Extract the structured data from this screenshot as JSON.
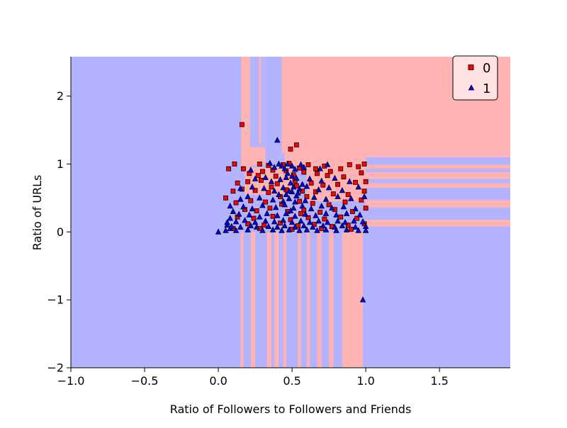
{
  "chart_data": {
    "type": "scatter",
    "title": "",
    "xlabel": "Ratio of Followers to Followers and Friends",
    "ylabel": "Ratio of URLs",
    "xlim": [
      -1.0,
      1.98
    ],
    "ylim": [
      -2.0,
      2.58
    ],
    "x_ticks": [
      -1.0,
      -0.5,
      0.0,
      0.5,
      1.0,
      1.5
    ],
    "x_tick_labels": [
      "−1.0",
      "−0.5",
      "0.0",
      "0.5",
      "1.0",
      "1.5"
    ],
    "y_ticks": [
      -2,
      -1,
      0,
      1,
      2
    ],
    "y_tick_labels": [
      "−2",
      "−1",
      "0",
      "1",
      "2"
    ],
    "grid": false,
    "legend": {
      "placement": "top-right",
      "entries": [
        "0",
        "1"
      ]
    },
    "colors": {
      "class_0_region": "#ffb3b3",
      "class_1_region": "#b3b3ff",
      "class_0_marker": "#ff0000",
      "class_1_marker": "#0000ff",
      "marker_edge": "#000000"
    },
    "decision_regions": {
      "description_class": "1",
      "class_0_rectangles": [
        {
          "x": [
            0.43,
            1.98
          ],
          "y": [
            1.15,
            2.58
          ]
        },
        {
          "x": [
            1.0,
            1.98
          ],
          "y": [
            1.1,
            1.15
          ]
        },
        {
          "x": [
            1.0,
            1.98
          ],
          "y": [
            0.93,
            0.99
          ]
        },
        {
          "x": [
            1.0,
            1.98
          ],
          "y": [
            0.78,
            0.88
          ]
        },
        {
          "x": [
            1.0,
            1.98
          ],
          "y": [
            0.65,
            0.72
          ]
        },
        {
          "x": [
            1.0,
            1.98
          ],
          "y": [
            0.36,
            0.47
          ]
        },
        {
          "x": [
            1.0,
            1.98
          ],
          "y": [
            0.08,
            0.18
          ]
        },
        {
          "x": [
            0.155,
            0.215
          ],
          "y": [
            0.92,
            2.58
          ]
        },
        {
          "x": [
            0.275,
            0.29
          ],
          "y": [
            1.3,
            2.58
          ]
        },
        {
          "x": [
            0.15,
            0.17
          ],
          "y": [
            -2.0,
            0.0
          ]
        },
        {
          "x": [
            0.22,
            0.25
          ],
          "y": [
            -2.0,
            0.0
          ]
        },
        {
          "x": [
            0.33,
            0.36
          ],
          "y": [
            -2.0,
            0.0
          ]
        },
        {
          "x": [
            0.38,
            0.41
          ],
          "y": [
            -2.0,
            0.0
          ]
        },
        {
          "x": [
            0.44,
            0.46
          ],
          "y": [
            -2.0,
            0.0
          ]
        },
        {
          "x": [
            0.54,
            0.56
          ],
          "y": [
            -2.0,
            0.0
          ]
        },
        {
          "x": [
            0.6,
            0.62
          ],
          "y": [
            -2.0,
            0.0
          ]
        },
        {
          "x": [
            0.67,
            0.7
          ],
          "y": [
            -2.0,
            0.0
          ]
        },
        {
          "x": [
            0.75,
            0.78
          ],
          "y": [
            -2.0,
            0.0
          ]
        },
        {
          "x": [
            0.84,
            0.98
          ],
          "y": [
            -2.0,
            0.0
          ]
        },
        {
          "x": [
            0.18,
            0.5
          ],
          "y": [
            0.55,
            0.95
          ]
        },
        {
          "x": [
            0.6,
            1.0
          ],
          "y": [
            0.45,
            0.98
          ]
        },
        {
          "x": [
            0.45,
            1.0
          ],
          "y": [
            0.98,
            1.15
          ]
        },
        {
          "x": [
            0.2,
            0.32
          ],
          "y": [
            0.98,
            1.25
          ]
        }
      ]
    },
    "series": [
      {
        "name": "0",
        "marker": "square",
        "points": [
          [
            0.16,
            1.58
          ],
          [
            0.53,
            1.28
          ],
          [
            0.49,
            1.22
          ],
          [
            0.07,
            0.93
          ],
          [
            0.11,
            1.0
          ],
          [
            0.17,
            0.93
          ],
          [
            0.28,
            1.0
          ],
          [
            0.34,
            0.98
          ],
          [
            0.37,
            0.91
          ],
          [
            0.3,
            0.89
          ],
          [
            0.44,
            0.99
          ],
          [
            0.48,
            1.01
          ],
          [
            0.55,
            0.94
          ],
          [
            0.61,
            0.99
          ],
          [
            0.66,
            0.93
          ],
          [
            0.72,
            0.97
          ],
          [
            0.76,
            0.89
          ],
          [
            0.83,
            0.93
          ],
          [
            0.89,
            0.99
          ],
          [
            0.95,
            0.96
          ],
          [
            0.99,
            1.0
          ],
          [
            0.21,
            0.86
          ],
          [
            0.27,
            0.83
          ],
          [
            0.39,
            0.82
          ],
          [
            0.51,
            0.84
          ],
          [
            0.58,
            0.88
          ],
          [
            0.67,
            0.86
          ],
          [
            0.74,
            0.83
          ],
          [
            0.85,
            0.81
          ],
          [
            0.97,
            0.87
          ],
          [
            0.13,
            0.72
          ],
          [
            0.2,
            0.74
          ],
          [
            0.29,
            0.76
          ],
          [
            0.4,
            0.71
          ],
          [
            0.52,
            0.75
          ],
          [
            0.63,
            0.72
          ],
          [
            0.71,
            0.69
          ],
          [
            0.81,
            0.7
          ],
          [
            0.93,
            0.73
          ],
          [
            1.0,
            0.74
          ],
          [
            0.05,
            0.5
          ],
          [
            0.1,
            0.6
          ],
          [
            0.16,
            0.63
          ],
          [
            0.25,
            0.61
          ],
          [
            0.34,
            0.58
          ],
          [
            0.46,
            0.62
          ],
          [
            0.57,
            0.6
          ],
          [
            0.66,
            0.59
          ],
          [
            0.78,
            0.56
          ],
          [
            0.88,
            0.55
          ],
          [
            0.99,
            0.6
          ],
          [
            0.12,
            0.43
          ],
          [
            0.22,
            0.46
          ],
          [
            0.32,
            0.44
          ],
          [
            0.43,
            0.41
          ],
          [
            0.55,
            0.45
          ],
          [
            0.64,
            0.42
          ],
          [
            0.75,
            0.4
          ],
          [
            0.86,
            0.44
          ],
          [
            0.97,
            0.47
          ],
          [
            0.18,
            0.33
          ],
          [
            0.26,
            0.31
          ],
          [
            0.35,
            0.35
          ],
          [
            0.47,
            0.3
          ],
          [
            0.58,
            0.32
          ],
          [
            0.69,
            0.29
          ],
          [
            0.79,
            0.33
          ],
          [
            0.91,
            0.3
          ],
          [
            1.0,
            0.35
          ],
          [
            0.13,
            0.22
          ],
          [
            0.24,
            0.2
          ],
          [
            0.37,
            0.23
          ],
          [
            0.49,
            0.18
          ],
          [
            0.61,
            0.21
          ],
          [
            0.72,
            0.19
          ],
          [
            0.83,
            0.22
          ],
          [
            0.94,
            0.2
          ],
          [
            0.99,
            0.12
          ],
          [
            0.2,
            0.12
          ],
          [
            0.31,
            0.1
          ],
          [
            0.42,
            0.13
          ],
          [
            0.54,
            0.09
          ],
          [
            0.65,
            0.11
          ],
          [
            0.77,
            0.08
          ],
          [
            0.88,
            0.1
          ],
          [
            0.1,
            0.05
          ],
          [
            0.28,
            0.05
          ],
          [
            0.5,
            0.04
          ],
          [
            0.7,
            0.05
          ],
          [
            0.9,
            0.04
          ],
          [
            0.46,
            0.9
          ],
          [
            0.53,
            0.68
          ],
          [
            0.6,
            0.52
          ],
          [
            0.42,
            0.52
          ],
          [
            0.36,
            0.66
          ],
          [
            0.56,
            0.27
          ]
        ]
      },
      {
        "name": "1",
        "marker": "triangle",
        "points": [
          [
            0.4,
            1.35
          ],
          [
            0.98,
            -1.0
          ],
          [
            0.0,
            0.0
          ],
          [
            0.05,
            0.02
          ],
          [
            0.08,
            0.05
          ],
          [
            0.06,
            0.1
          ],
          [
            0.35,
            1.01
          ],
          [
            0.38,
            0.95
          ],
          [
            0.41,
            1.0
          ],
          [
            0.43,
            0.97
          ],
          [
            0.45,
            0.93
          ],
          [
            0.47,
            1.0
          ],
          [
            0.5,
            0.97
          ],
          [
            0.52,
            0.92
          ],
          [
            0.56,
            0.99
          ],
          [
            0.58,
            0.95
          ],
          [
            0.69,
            0.93
          ],
          [
            0.74,
            0.99
          ],
          [
            0.22,
            0.91
          ],
          [
            0.25,
            0.78
          ],
          [
            0.32,
            0.8
          ],
          [
            0.36,
            0.74
          ],
          [
            0.42,
            0.77
          ],
          [
            0.46,
            0.8
          ],
          [
            0.49,
            0.72
          ],
          [
            0.53,
            0.79
          ],
          [
            0.57,
            0.7
          ],
          [
            0.62,
            0.78
          ],
          [
            0.7,
            0.75
          ],
          [
            0.79,
            0.79
          ],
          [
            0.89,
            0.74
          ],
          [
            0.15,
            0.64
          ],
          [
            0.23,
            0.66
          ],
          [
            0.31,
            0.64
          ],
          [
            0.38,
            0.6
          ],
          [
            0.44,
            0.65
          ],
          [
            0.5,
            0.59
          ],
          [
            0.55,
            0.63
          ],
          [
            0.6,
            0.67
          ],
          [
            0.68,
            0.62
          ],
          [
            0.75,
            0.65
          ],
          [
            0.84,
            0.61
          ],
          [
            0.95,
            0.66
          ],
          [
            0.08,
            0.38
          ],
          [
            0.15,
            0.48
          ],
          [
            0.2,
            0.52
          ],
          [
            0.28,
            0.5
          ],
          [
            0.37,
            0.47
          ],
          [
            0.41,
            0.55
          ],
          [
            0.48,
            0.49
          ],
          [
            0.53,
            0.53
          ],
          [
            0.59,
            0.46
          ],
          [
            0.65,
            0.51
          ],
          [
            0.73,
            0.48
          ],
          [
            0.81,
            0.52
          ],
          [
            0.9,
            0.49
          ],
          [
            0.99,
            0.52
          ],
          [
            0.1,
            0.3
          ],
          [
            0.17,
            0.37
          ],
          [
            0.23,
            0.34
          ],
          [
            0.3,
            0.39
          ],
          [
            0.39,
            0.36
          ],
          [
            0.45,
            0.4
          ],
          [
            0.51,
            0.35
          ],
          [
            0.57,
            0.38
          ],
          [
            0.63,
            0.34
          ],
          [
            0.7,
            0.38
          ],
          [
            0.77,
            0.35
          ],
          [
            0.85,
            0.37
          ],
          [
            0.93,
            0.34
          ],
          [
            0.08,
            0.2
          ],
          [
            0.14,
            0.26
          ],
          [
            0.21,
            0.25
          ],
          [
            0.28,
            0.22
          ],
          [
            0.33,
            0.27
          ],
          [
            0.4,
            0.24
          ],
          [
            0.46,
            0.27
          ],
          [
            0.52,
            0.23
          ],
          [
            0.59,
            0.26
          ],
          [
            0.66,
            0.24
          ],
          [
            0.73,
            0.27
          ],
          [
            0.8,
            0.25
          ],
          [
            0.87,
            0.27
          ],
          [
            0.96,
            0.25
          ],
          [
            0.06,
            0.14
          ],
          [
            0.12,
            0.15
          ],
          [
            0.18,
            0.17
          ],
          [
            0.25,
            0.14
          ],
          [
            0.32,
            0.16
          ],
          [
            0.38,
            0.15
          ],
          [
            0.44,
            0.17
          ],
          [
            0.5,
            0.14
          ],
          [
            0.56,
            0.16
          ],
          [
            0.62,
            0.14
          ],
          [
            0.68,
            0.16
          ],
          [
            0.74,
            0.14
          ],
          [
            0.81,
            0.16
          ],
          [
            0.86,
            0.14
          ],
          [
            0.92,
            0.16
          ],
          [
            0.98,
            0.15
          ],
          [
            0.09,
            0.08
          ],
          [
            0.15,
            0.07
          ],
          [
            0.22,
            0.09
          ],
          [
            0.26,
            0.07
          ],
          [
            0.34,
            0.08
          ],
          [
            0.4,
            0.07
          ],
          [
            0.45,
            0.09
          ],
          [
            0.52,
            0.07
          ],
          [
            0.58,
            0.09
          ],
          [
            0.64,
            0.07
          ],
          [
            0.71,
            0.09
          ],
          [
            0.79,
            0.07
          ],
          [
            0.84,
            0.09
          ],
          [
            0.93,
            0.07
          ],
          [
            1.0,
            0.08
          ],
          [
            0.12,
            0.02
          ],
          [
            0.2,
            0.03
          ],
          [
            0.3,
            0.02
          ],
          [
            0.37,
            0.03
          ],
          [
            0.43,
            0.02
          ],
          [
            0.48,
            0.03
          ],
          [
            0.55,
            0.02
          ],
          [
            0.6,
            0.03
          ],
          [
            0.67,
            0.02
          ],
          [
            0.73,
            0.03
          ],
          [
            0.8,
            0.02
          ],
          [
            0.87,
            0.03
          ],
          [
            0.95,
            0.02
          ],
          [
            1.0,
            0.02
          ],
          [
            0.47,
            0.86
          ],
          [
            0.5,
            0.82
          ],
          [
            0.51,
            0.66
          ],
          [
            0.48,
            0.6
          ],
          [
            0.52,
            0.44
          ],
          [
            0.49,
            0.31
          ],
          [
            0.46,
            0.55
          ],
          [
            0.54,
            0.57
          ],
          [
            0.44,
            0.45
          ]
        ]
      }
    ]
  }
}
